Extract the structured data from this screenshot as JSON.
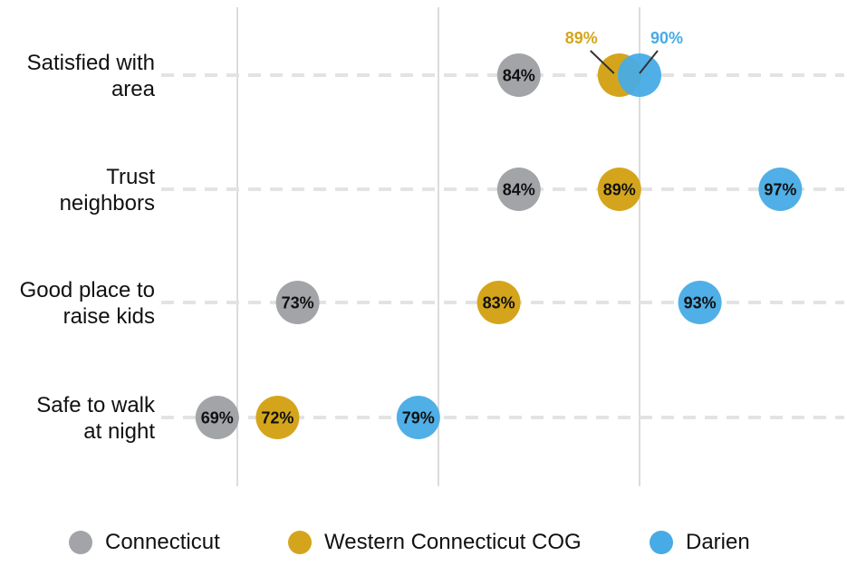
{
  "chart_data": {
    "type": "scatter",
    "categories": [
      "Satisfied with area",
      "Trust neighbors",
      "Good place to raise kids",
      "Safe to walk at night"
    ],
    "category_lines": [
      [
        "Satisfied with",
        "area"
      ],
      [
        "Trust",
        "neighbors"
      ],
      [
        "Good place to",
        "raise kids"
      ],
      [
        "Safe to walk",
        "at night"
      ]
    ],
    "series": [
      {
        "name": "Connecticut",
        "color": "#a2a4a8",
        "values": [
          84,
          84,
          73,
          69
        ],
        "labels": [
          "84%",
          "84%",
          "73%",
          "69%"
        ]
      },
      {
        "name": "Western Connecticut COG",
        "color": "#d4a51c",
        "values": [
          89,
          89,
          83,
          72
        ],
        "labels": [
          "89%",
          "89%",
          "83%",
          "72%"
        ]
      },
      {
        "name": "Darien",
        "color": "#47abe5",
        "values": [
          90,
          97,
          93,
          79
        ],
        "labels": [
          "90%",
          "97%",
          "93%",
          "79%"
        ]
      }
    ],
    "callouts": [
      {
        "category_index": 0,
        "series_index": 1,
        "text": "89%"
      },
      {
        "category_index": 0,
        "series_index": 2,
        "text": "90%"
      }
    ],
    "xlim": [
      66,
      100
    ],
    "gridlines": [
      70,
      80,
      90
    ],
    "grid": true,
    "legend_position": "bottom"
  },
  "legend": {
    "items": [
      {
        "label": "Connecticut",
        "color": "#a2a4a8"
      },
      {
        "label": "Western Connecticut COG",
        "color": "#d4a51c"
      },
      {
        "label": "Darien",
        "color": "#47abe5"
      }
    ]
  }
}
